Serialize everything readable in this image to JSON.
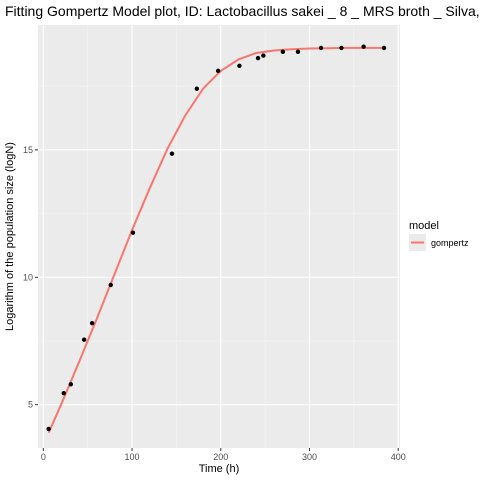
{
  "chart_data": {
    "type": "scatter",
    "title": "Fitting Gompertz Model plot, ID: Lactobacillus sakei _ 8 _ MRS broth _ Silva,",
    "xlabel": "Time (h)",
    "ylabel": "Logarithm of the population size (logN)",
    "xlim": [
      -6,
      402
    ],
    "ylim": [
      3.3,
      19.9
    ],
    "x_ticks": [
      0,
      100,
      200,
      300,
      400
    ],
    "y_ticks": [
      5,
      10,
      15
    ],
    "grid": true,
    "legend": {
      "title": "model",
      "position": "right",
      "entries": [
        {
          "label": "gompertz",
          "color": "#F8766D"
        }
      ]
    },
    "points": {
      "color": "#000000",
      "x": [
        6,
        23,
        31,
        46,
        55,
        76,
        101,
        145,
        173,
        197,
        221,
        242,
        248,
        270,
        287,
        313,
        336,
        361,
        384
      ],
      "y": [
        4.05,
        5.45,
        5.8,
        7.55,
        8.2,
        9.7,
        11.75,
        14.85,
        17.4,
        18.1,
        18.3,
        18.6,
        18.7,
        18.85,
        18.85,
        19.0,
        19.0,
        19.05,
        19.0
      ]
    },
    "series": [
      {
        "name": "gompertz",
        "color": "#F8766D",
        "x": [
          6,
          20,
          40,
          60,
          80,
          100,
          120,
          140,
          160,
          180,
          200,
          220,
          240,
          260,
          280,
          300,
          320,
          340,
          360,
          384
        ],
        "y": [
          3.9,
          5.0,
          6.65,
          8.35,
          10.1,
          11.85,
          13.5,
          15.05,
          16.35,
          17.4,
          18.1,
          18.55,
          18.8,
          18.9,
          18.95,
          18.98,
          18.99,
          19.0,
          19.0,
          19.0
        ]
      }
    ]
  }
}
